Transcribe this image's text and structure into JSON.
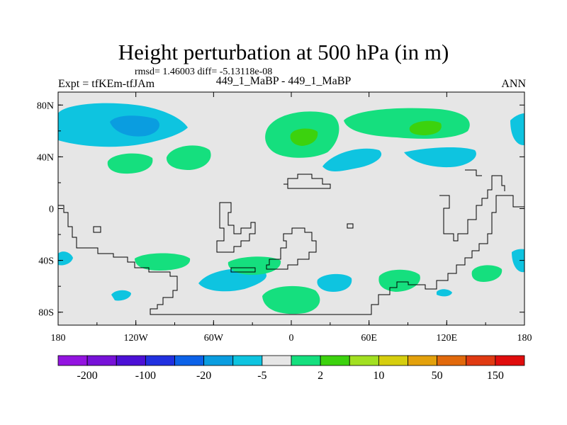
{
  "header": {
    "title": "Height perturbation at 500 hPa (in m)",
    "stats": "rmsd= 1.46003 diff= -5.13118e-08",
    "left_label": "Expt = tfKEm-tfJAm",
    "center_label": "449_1_MaBP - 449_1_MaBP",
    "right_label": "ANN"
  },
  "chart_data": {
    "type": "contour-map",
    "title": "Height perturbation at 500 hPa (in m)",
    "x_ticks": [
      "180",
      "120W",
      "60W",
      "0",
      "60E",
      "120E",
      "180"
    ],
    "x_tick_values": [
      -180,
      -120,
      -60,
      0,
      60,
      120,
      180
    ],
    "y_ticks": [
      "80N",
      "40N",
      "0",
      "40S",
      "80S"
    ],
    "y_tick_values": [
      80,
      40,
      0,
      -40,
      -80
    ],
    "xlim": [
      -180,
      180
    ],
    "ylim": [
      -90,
      90
    ],
    "colorbar": {
      "labels": [
        "-200",
        "-100",
        "-20",
        "-5",
        "2",
        "10",
        "50",
        "150"
      ],
      "colors": [
        "#9314e0",
        "#7712d8",
        "#4c10d6",
        "#2130e0",
        "#0c62e8",
        "#0a9de0",
        "#0ec4e0",
        "#e6e6e6",
        "#15df7e",
        "#3cd20e",
        "#a2e021",
        "#d6ce0e",
        "#e3a10c",
        "#e1690c",
        "#e03a12",
        "#e00d0d"
      ]
    },
    "anomalies": [
      {
        "region": "North Pacific / North America",
        "value_range": "-5 to -20",
        "color": "#0ec4e0"
      },
      {
        "region": "Northwest Pacific core",
        "value_range": "-20",
        "color": "#0a9de0"
      },
      {
        "region": "Eurasia high latitudes",
        "value_range": "2 to 10",
        "color": "#15df7e"
      },
      {
        "region": "Southern Ocean",
        "value_range": "-5 / 2",
        "color": "#0ec4e0"
      }
    ],
    "grid": false
  }
}
